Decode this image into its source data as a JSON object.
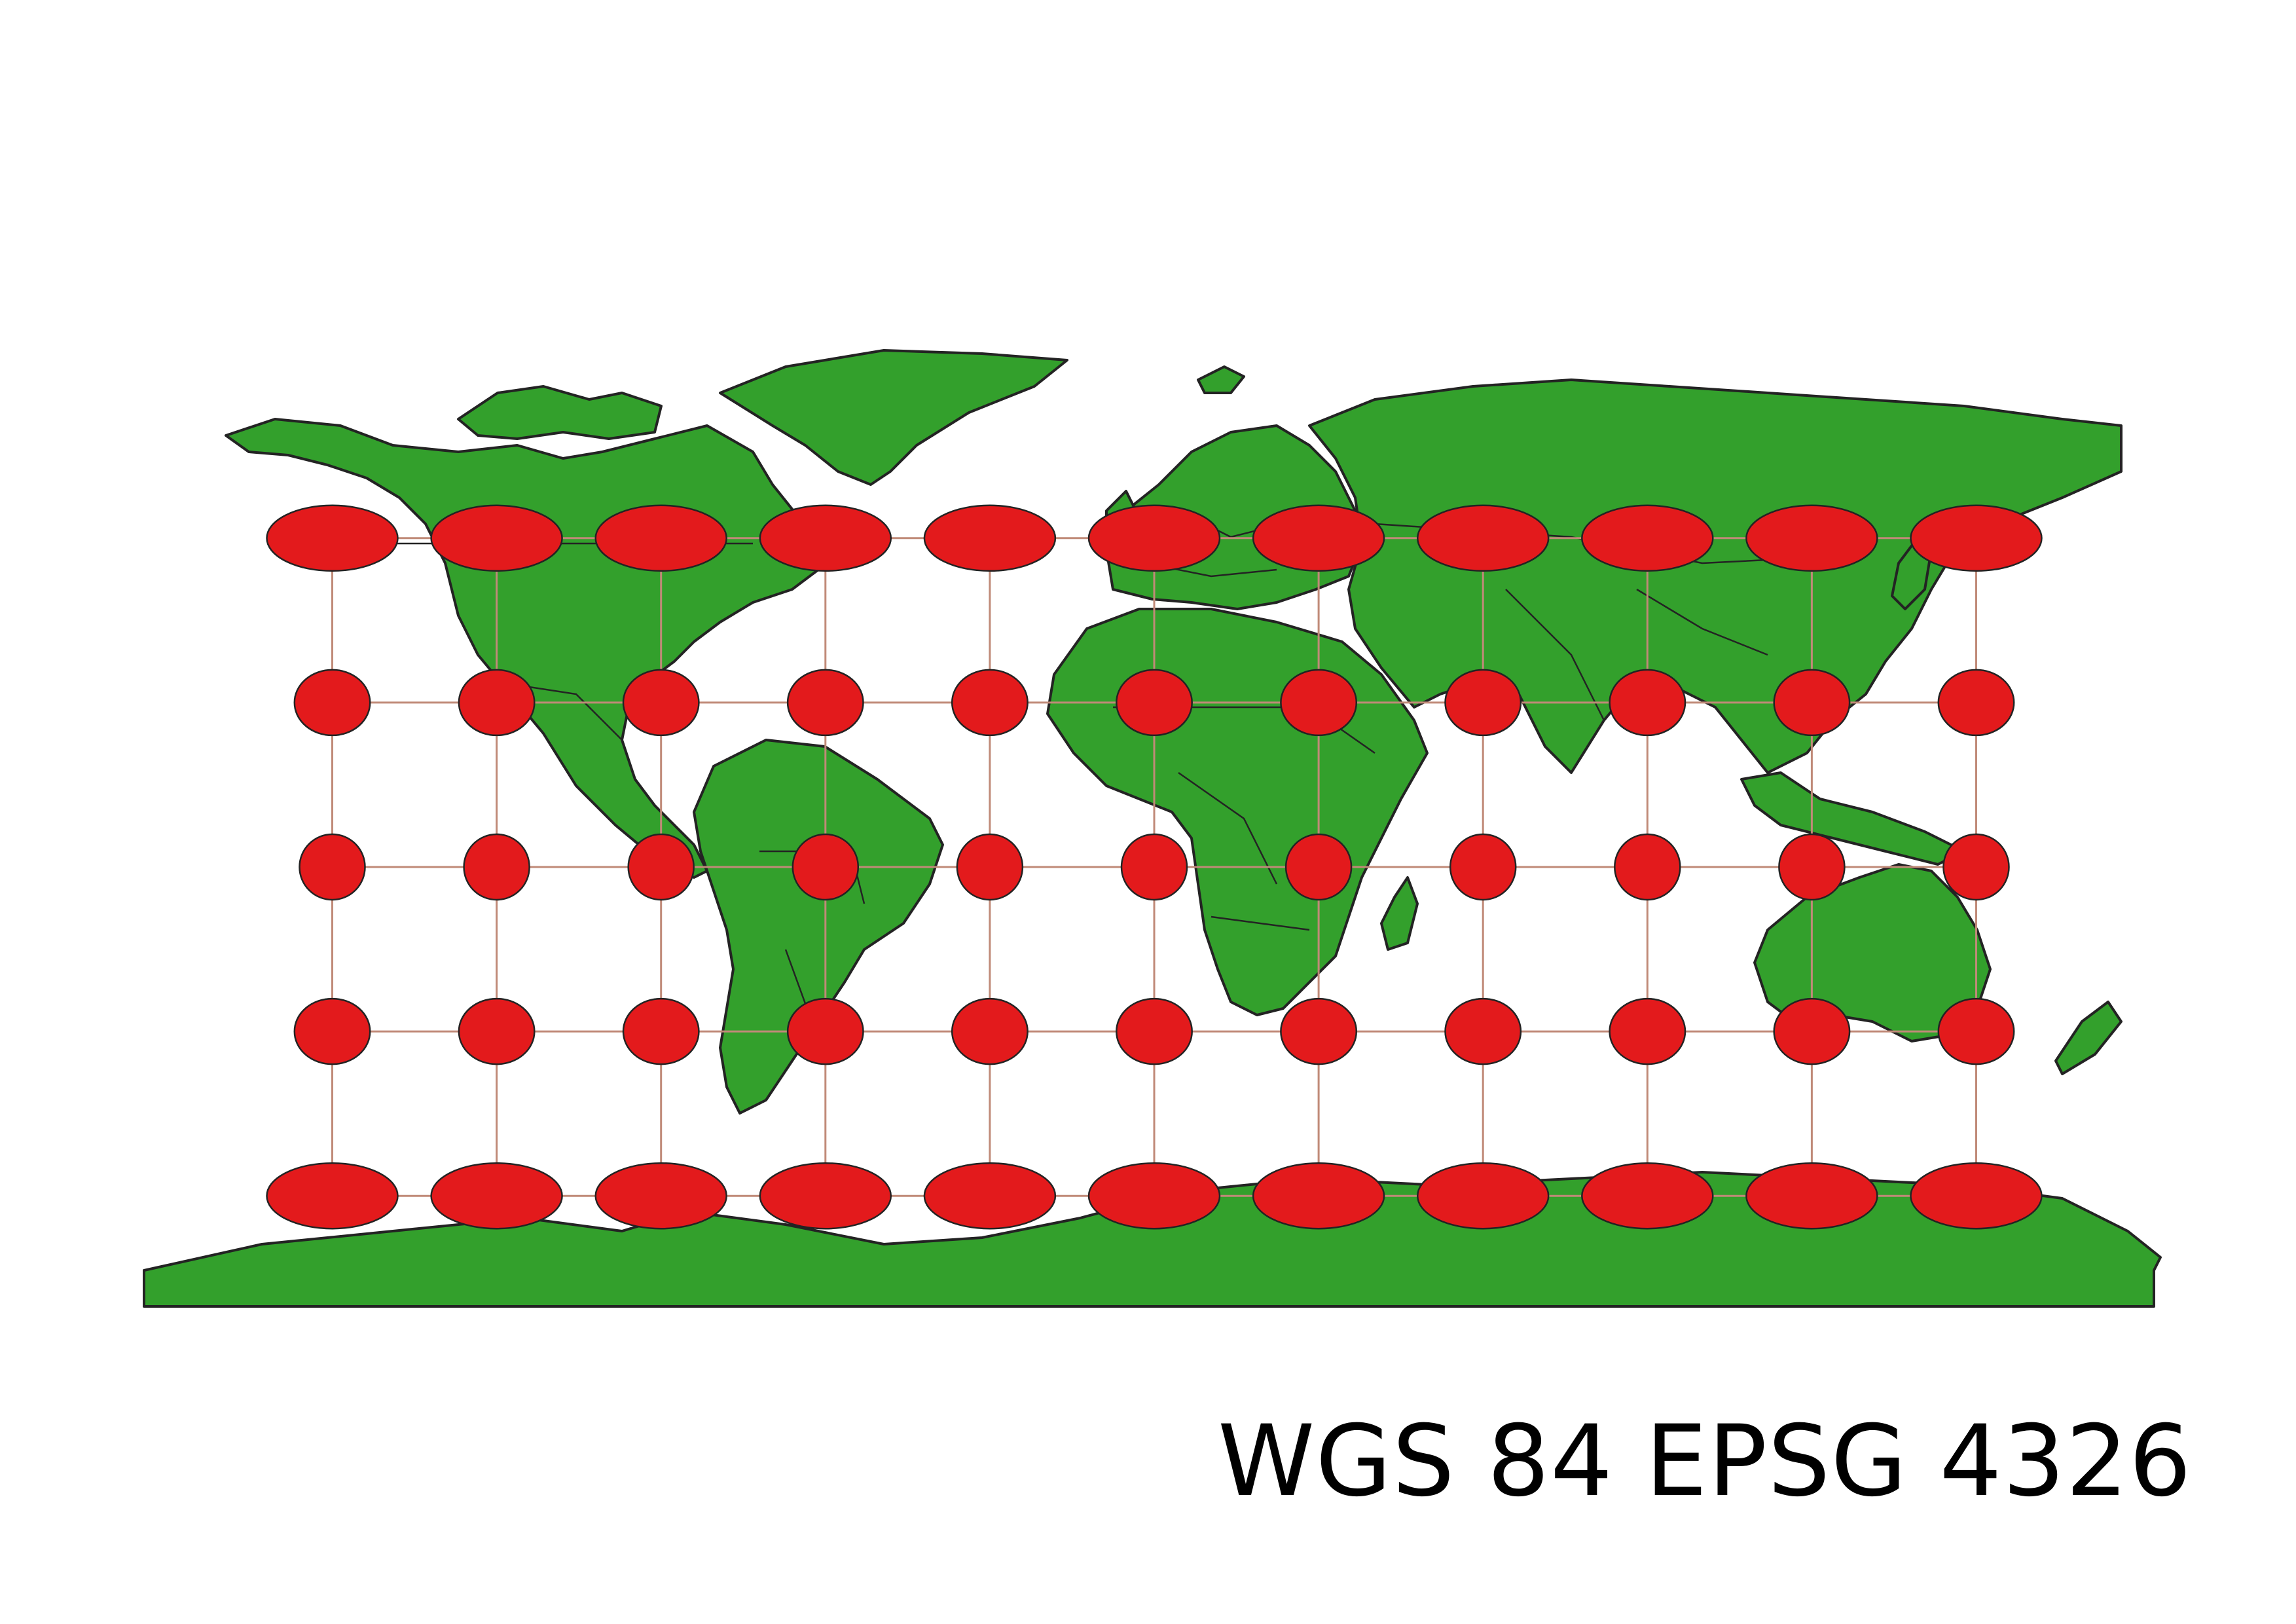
{
  "map": {
    "title": "WGS 84 EPSG 4326",
    "projection": "plate-carree",
    "colors": {
      "land": "#33a02c",
      "border": "#232323",
      "indicatrix": "#e31a1c",
      "graticule": "#c08a78",
      "background": "#ffffff"
    },
    "graticule": {
      "longitudes": [
        -150,
        -120,
        -90,
        -60,
        -30,
        0,
        30,
        60,
        90,
        120,
        150
      ],
      "latitudes": [
        60,
        30,
        0,
        -30,
        -60
      ]
    }
  }
}
